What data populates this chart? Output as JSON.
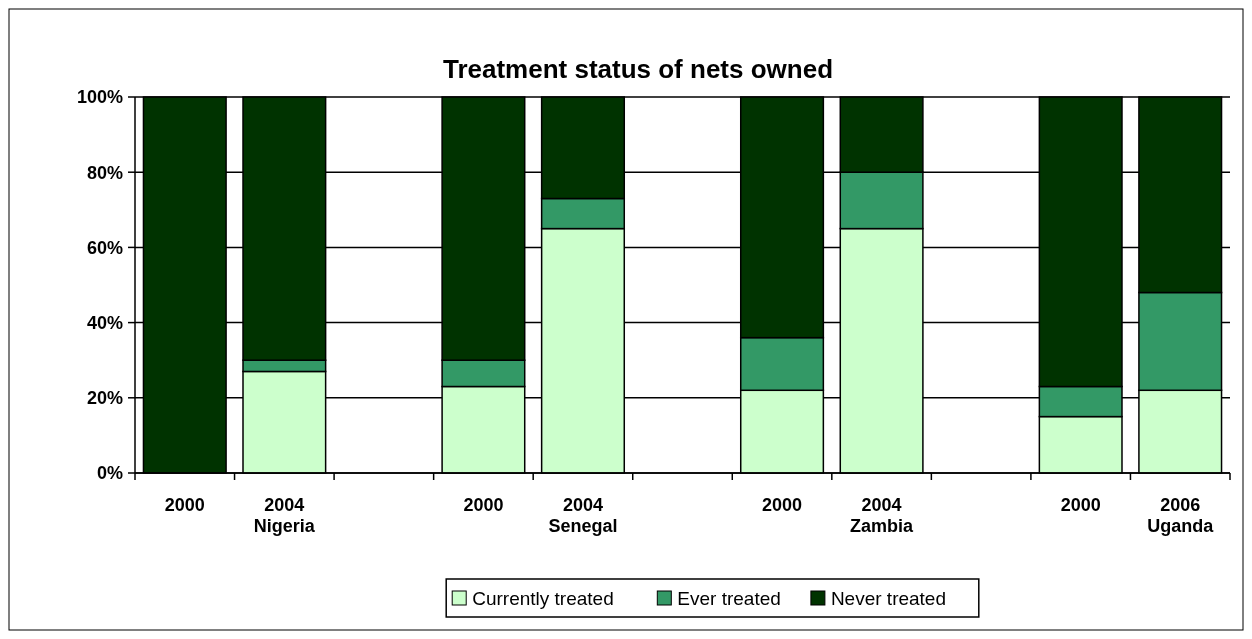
{
  "chart_data": {
    "type": "bar",
    "title": "Treatment status of nets owned",
    "stacked": true,
    "categories": [
      "2000",
      "2004\nNigeria",
      null,
      "2000",
      "2004\nSenegal",
      null,
      "2000",
      "2004\nZambia",
      null,
      "2000",
      "2006\nUganda"
    ],
    "series": [
      {
        "name": "Currently treated",
        "color": "#ccffcc",
        "values": [
          0,
          27,
          null,
          23,
          65,
          null,
          22,
          65,
          null,
          15,
          22
        ]
      },
      {
        "name": "Ever treated",
        "color": "#339966",
        "values": [
          0,
          3,
          null,
          7,
          8,
          null,
          14,
          15,
          null,
          8,
          26
        ]
      },
      {
        "name": "Never treated",
        "color": "#003300",
        "values": [
          100,
          70,
          null,
          70,
          27,
          null,
          64,
          20,
          null,
          77,
          52
        ]
      }
    ],
    "ylim": [
      0,
      100
    ],
    "yticks": [
      {
        "value": 0,
        "label": "0%"
      },
      {
        "value": 20,
        "label": "20%"
      },
      {
        "value": 40,
        "label": "40%"
      },
      {
        "value": 60,
        "label": "60%"
      },
      {
        "value": 80,
        "label": "80%"
      },
      {
        "value": 100,
        "label": "100%"
      }
    ],
    "grid": "y",
    "legend": "bottom"
  }
}
